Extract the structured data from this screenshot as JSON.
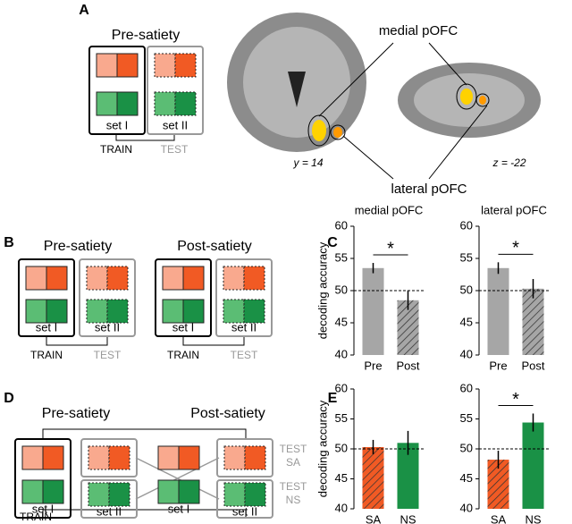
{
  "panel_labels": [
    "A",
    "B",
    "C",
    "D",
    "E"
  ],
  "panel_a": {
    "title": "Pre-satiety",
    "sets": [
      "set I",
      "set II"
    ],
    "train": "TRAIN",
    "test": "TEST",
    "annotations": [
      "medial pOFC",
      "lateral pOFC",
      "y = 14",
      "z = -22"
    ]
  },
  "panel_b": {
    "titles": [
      "Pre-satiety",
      "Post-satiety"
    ],
    "sets": [
      "set I",
      "set II",
      "set I",
      "set II"
    ],
    "train": [
      "TRAIN",
      "TRAIN"
    ],
    "test": [
      "TEST",
      "TEST"
    ]
  },
  "panel_d": {
    "titles": [
      "Pre-satiety",
      "Post-satiety"
    ],
    "sets": [
      "set I",
      "set II",
      "set I",
      "set II"
    ],
    "train": "TRAIN",
    "tests": [
      [
        "TEST",
        "SA"
      ],
      [
        "TEST",
        "NS"
      ]
    ]
  },
  "chart_data": [
    {
      "type": "bar",
      "title": "medial pOFC",
      "ylabel": "decoding accuracy",
      "categories": [
        "Pre",
        "Post"
      ],
      "values": [
        53.5,
        48.5
      ],
      "errors": [
        0.8,
        1.5
      ],
      "colors": [
        "#a6a6a6",
        "#a6a6a6"
      ],
      "hatch": [
        false,
        true
      ],
      "ylim": [
        40,
        60
      ],
      "yticks": [
        40,
        45,
        50,
        55,
        60
      ],
      "chance": 50,
      "significance": "*"
    },
    {
      "type": "bar",
      "title": "lateral pOFC",
      "categories": [
        "Pre",
        "Post"
      ],
      "values": [
        53.5,
        50.3
      ],
      "errors": [
        0.9,
        1.5
      ],
      "colors": [
        "#a6a6a6",
        "#a6a6a6"
      ],
      "hatch": [
        false,
        true
      ],
      "ylim": [
        40,
        60
      ],
      "yticks": [
        40,
        45,
        50,
        55,
        60
      ],
      "chance": 50,
      "significance": "*"
    },
    {
      "type": "bar",
      "ylabel": "decoding accuracy",
      "categories": [
        "SA",
        "NS"
      ],
      "values": [
        50.3,
        51.0
      ],
      "errors": [
        1.2,
        2.0
      ],
      "colors": [
        "#f15a24",
        "#1a9146"
      ],
      "hatch": [
        true,
        false
      ],
      "ylim": [
        40,
        60
      ],
      "yticks": [
        40,
        45,
        50,
        55,
        60
      ],
      "chance": 50
    },
    {
      "type": "bar",
      "categories": [
        "SA",
        "NS"
      ],
      "values": [
        48.2,
        54.4
      ],
      "errors": [
        1.5,
        1.5
      ],
      "colors": [
        "#f15a24",
        "#1a9146"
      ],
      "hatch": [
        true,
        false
      ],
      "ylim": [
        40,
        60
      ],
      "yticks": [
        40,
        45,
        50,
        55,
        60
      ],
      "chance": 50,
      "significance": "*"
    }
  ]
}
